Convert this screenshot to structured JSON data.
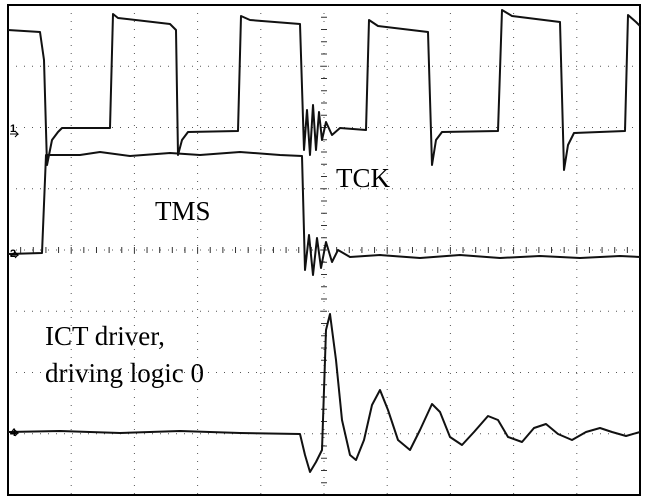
{
  "annotations": {
    "tck": "TCK",
    "tms": "TMS",
    "ict_line1": "ICT driver,",
    "ict_line2": "driving logic 0"
  },
  "channel_markers": [
    "1",
    "2",
    "4"
  ]
}
